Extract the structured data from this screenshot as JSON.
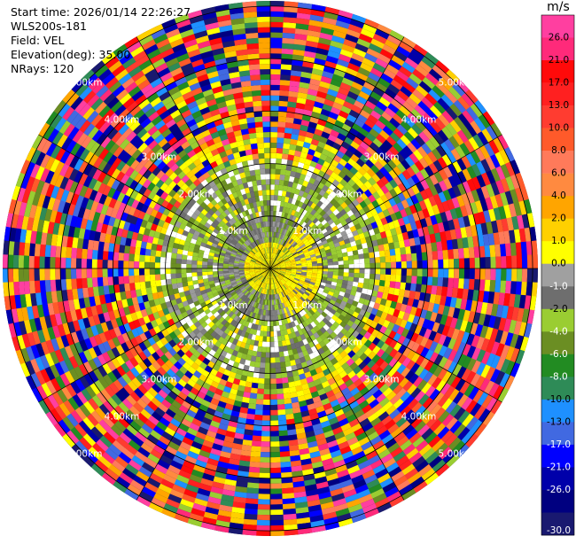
{
  "info": {
    "start_time": "Start time: 2026/01/14 22:26:27",
    "station": "WLS200s-181",
    "field": "Field: VEL",
    "elevation": "Elevation(deg): 35.00",
    "nrays": "NRays: 120"
  },
  "colorbar": {
    "unit": "m/s",
    "ticks": [
      "26.0",
      "21.0",
      "17.0",
      "13.0",
      "10.0",
      "8.0",
      "6.0",
      "4.0",
      "2.0",
      "1.0",
      "0.0",
      "-1.0",
      "-2.0",
      "-4.0",
      "-6.0",
      "-8.0",
      "-10.0",
      "-13.0",
      "-17.0",
      "-21.0",
      "-26.0",
      "-30.0"
    ],
    "colors": [
      "#ff3fa0",
      "#ff2a7a",
      "#ff0a0a",
      "#ff2020",
      "#ff3c30",
      "#ff5a2a",
      "#ff7a5a",
      "#ff8a40",
      "#ffa500",
      "#ffd000",
      "#ffff00",
      "#a0a0a0",
      "#6e6e6e",
      "#9acd32",
      "#6b8e23",
      "#228b22",
      "#2e8b57",
      "#1e90ff",
      "#4169e1",
      "#0000ff",
      "#0000aa",
      "#000080",
      "#191970"
    ]
  },
  "chart_data": {
    "type": "heatmap",
    "projection": "polar-ppi",
    "field": "VEL",
    "units": "m/s",
    "elevation_deg": 35.0,
    "nrays": 120,
    "range_rings_km": [
      1.0,
      2.0,
      3.0,
      4.0,
      5.0
    ],
    "ring_labels": [
      "1.0km",
      "2.00km",
      "3.00km",
      "4.00km",
      "5.00km"
    ],
    "max_range_km": 5.1,
    "azimuth_spokes_deg": [
      0,
      30,
      60,
      90,
      120,
      150,
      180,
      210,
      240,
      270,
      300,
      330
    ],
    "gate_spacing_km": 0.1,
    "pattern": {
      "center_near_zero_to_km": 0.55,
      "inner_yellow_positive_to_km": 1.0,
      "green_gray_mix_to_km": 2.1,
      "transition_yellow_to_km": 2.6,
      "noise_beyond_km": 2.3
    }
  }
}
